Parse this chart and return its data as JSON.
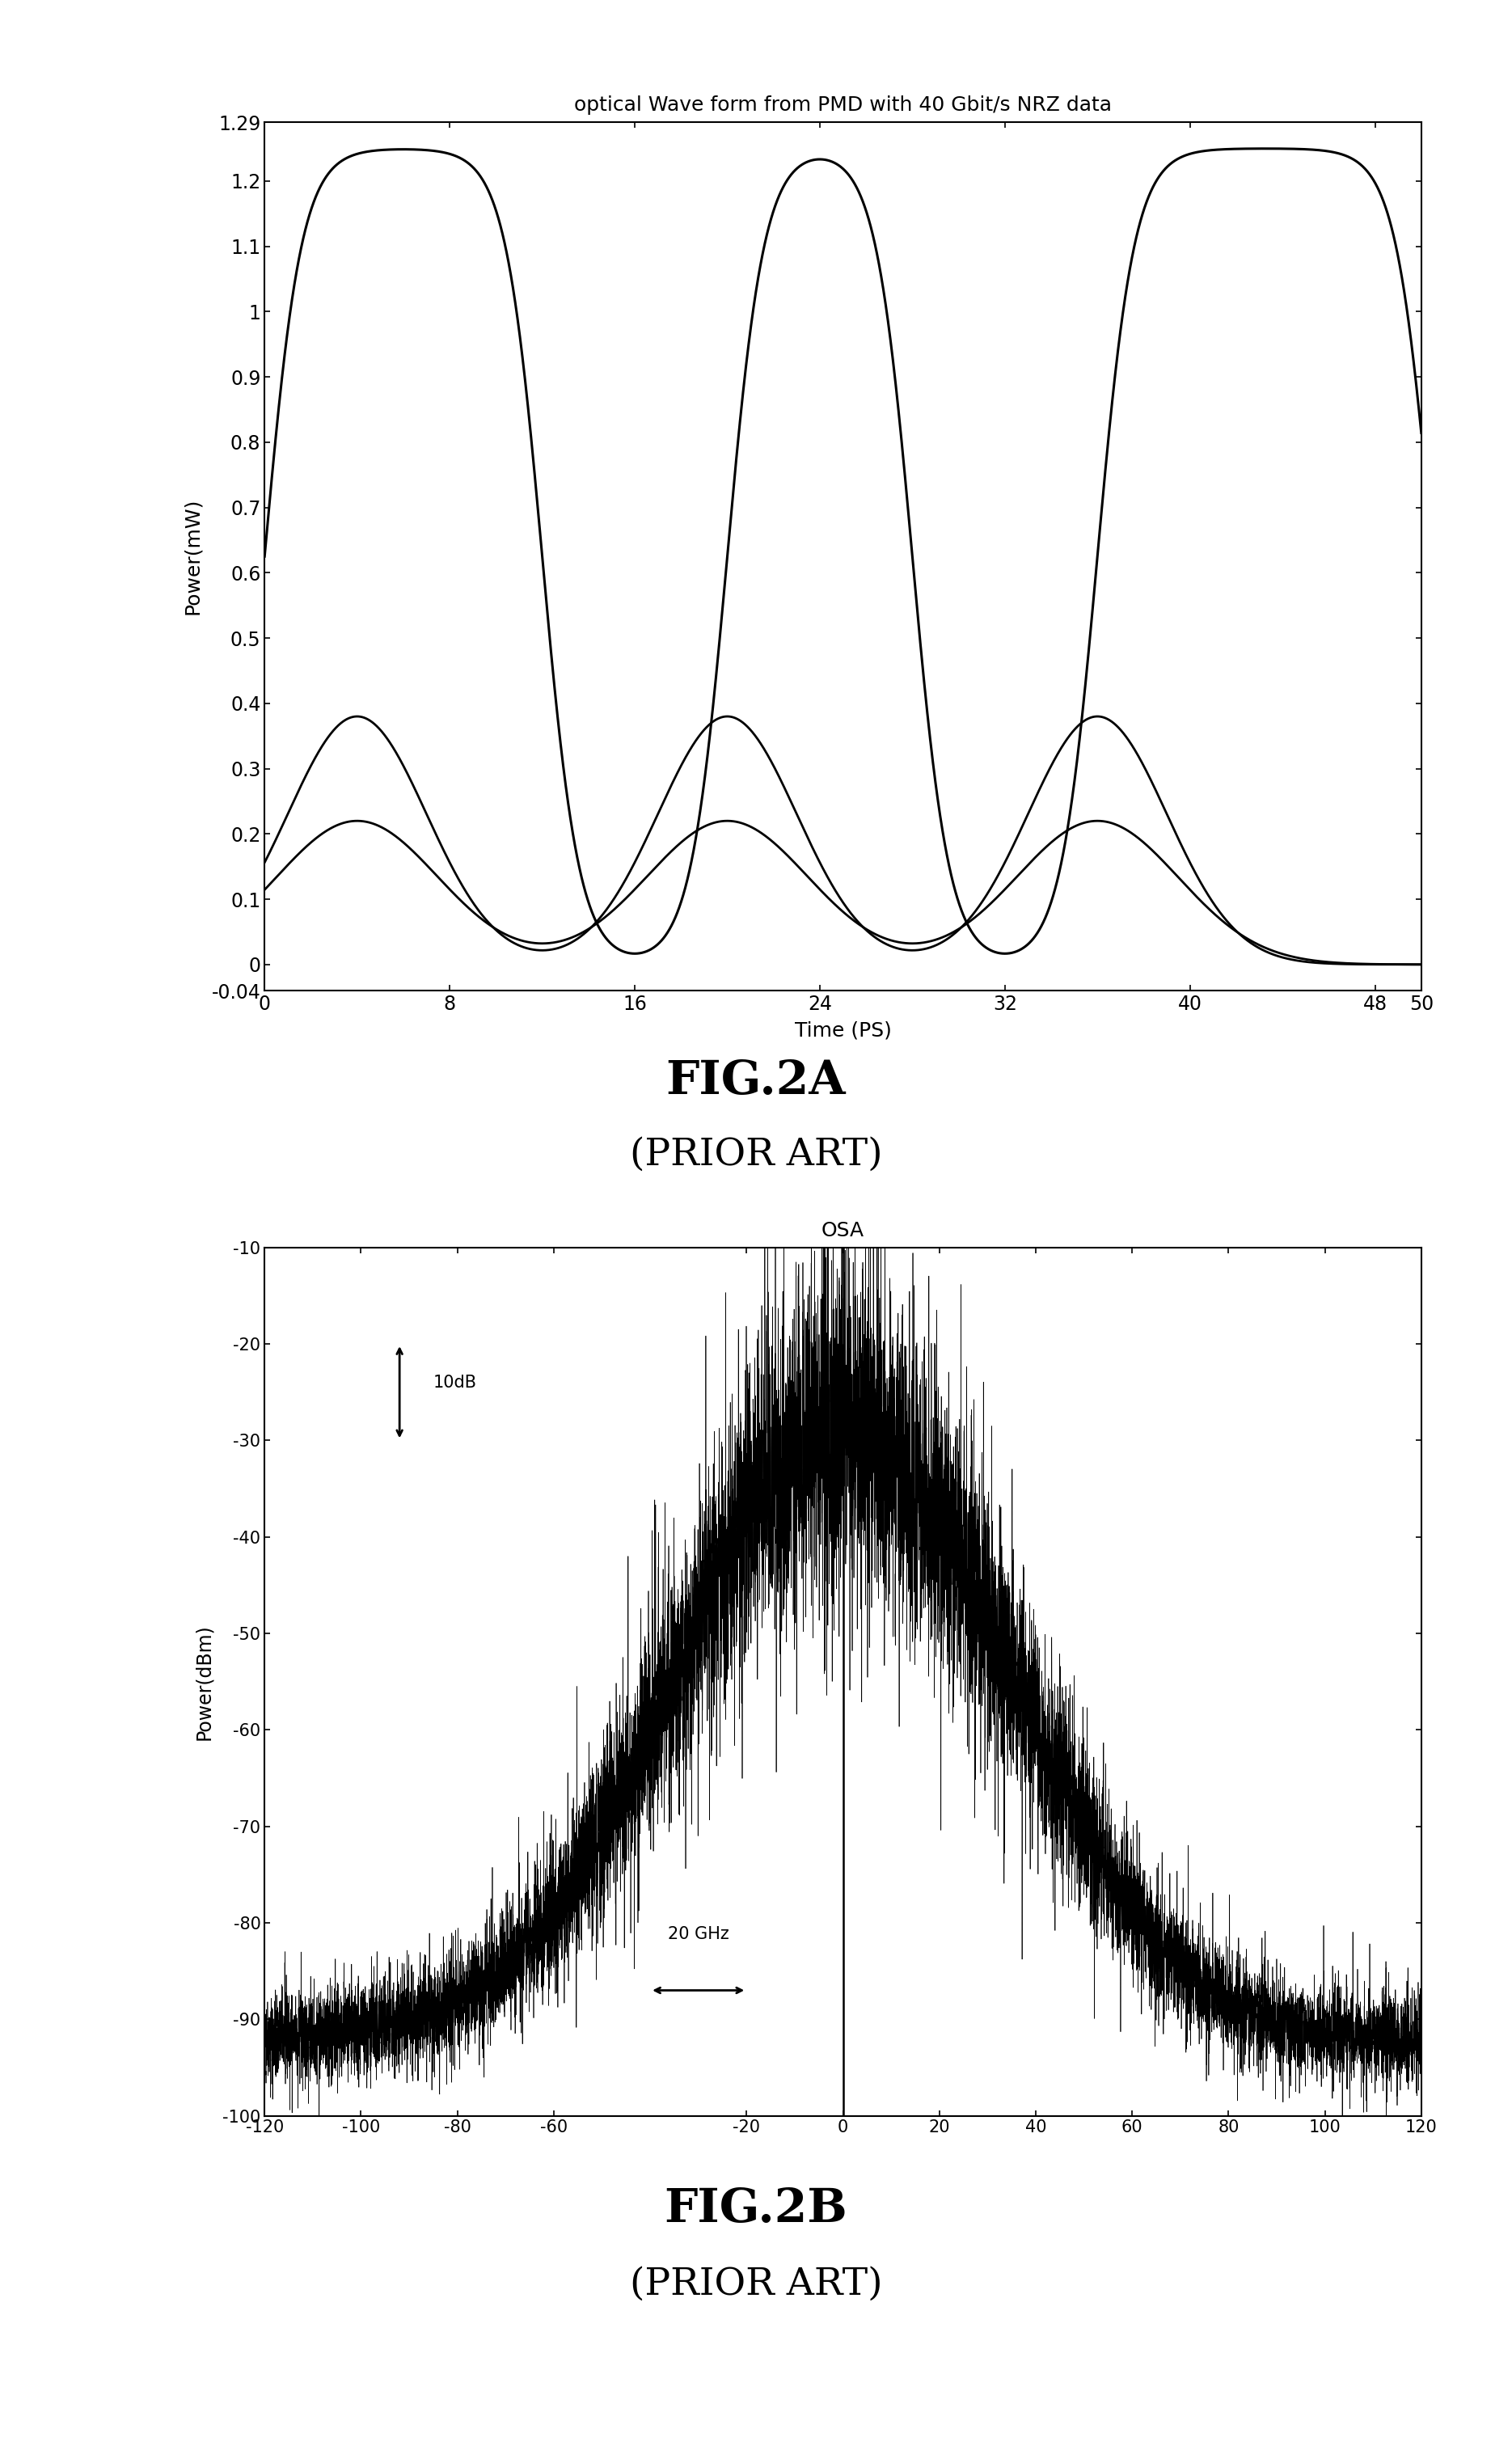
{
  "fig2a_title": "optical Wave form from PMD with 40 Gbit/s NRZ data",
  "fig2a_xlabel": "Time (PS)",
  "fig2a_ylabel": "Power(mW)",
  "fig2a_xlim": [
    0,
    50
  ],
  "fig2a_ylim": [
    -0.04,
    1.29
  ],
  "fig2a_xticks": [
    0,
    8,
    16,
    24,
    32,
    40,
    48,
    50
  ],
  "fig2a_ytick_labels": [
    "-0.04",
    "0",
    "0.1",
    "0.2",
    "0.3",
    "0.4",
    "0.5",
    "0.6",
    "0.7",
    "0.8",
    "0.9",
    "1",
    "1.1",
    "1.2",
    "1.29"
  ],
  "fig2a_yticks": [
    -0.04,
    0,
    0.1,
    0.2,
    0.3,
    0.4,
    0.5,
    0.6,
    0.7,
    0.8,
    0.9,
    1.0,
    1.1,
    1.2,
    1.29
  ],
  "fig2a_caption": "FIG.2A",
  "fig2a_subcaption": "(PRIOR ART)",
  "fig2b_title": "OSA",
  "fig2b_ylabel": "Power(dBm)",
  "fig2b_xlim": [
    -120,
    120
  ],
  "fig2b_ylim": [
    -100,
    -10
  ],
  "fig2b_xticks": [
    -120,
    -100,
    -80,
    -60,
    -20,
    0,
    20,
    40,
    60,
    80,
    100,
    120
  ],
  "fig2b_yticks": [
    -100,
    -90,
    -80,
    -70,
    -60,
    -50,
    -40,
    -30,
    -20,
    -10
  ],
  "fig2b_caption": "FIG.2B",
  "fig2b_subcaption": "(PRIOR ART)",
  "line_color": "#000000",
  "background_color": "#ffffff"
}
